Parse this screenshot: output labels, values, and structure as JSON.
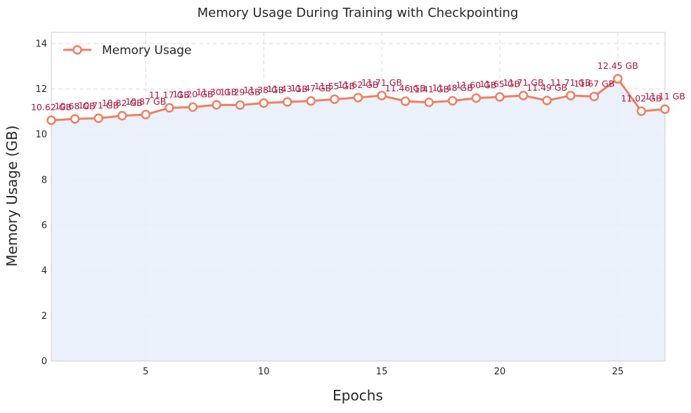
{
  "chart_data": {
    "type": "line",
    "title": "Memory Usage During Training with Checkpointing",
    "xlabel": "Epochs",
    "ylabel": "Memory Usage (GB)",
    "xlim": [
      1,
      27
    ],
    "ylim": [
      0,
      14.5
    ],
    "xticks": [
      5,
      10,
      15,
      20,
      25
    ],
    "yticks": [
      0,
      2,
      4,
      6,
      8,
      10,
      12,
      14
    ],
    "grid": true,
    "legend_position": "top-left",
    "colors": {
      "line": "#ef7f62",
      "fill": "#e8f0fb",
      "marker_fill": "#ffffff",
      "label": "#b0123b",
      "frame": "#cccccc"
    },
    "series": [
      {
        "name": "Memory Usage",
        "x": [
          1,
          2,
          3,
          4,
          5,
          6,
          7,
          8,
          9,
          10,
          11,
          12,
          13,
          14,
          15,
          16,
          17,
          18,
          19,
          20,
          21,
          22,
          23,
          24,
          25,
          26,
          27
        ],
        "values": [
          10.62,
          10.68,
          10.71,
          10.82,
          10.87,
          11.17,
          11.2,
          11.3,
          11.29,
          11.38,
          11.43,
          11.47,
          11.55,
          11.62,
          11.71,
          11.46,
          11.41,
          11.48,
          11.6,
          11.65,
          11.71,
          11.49,
          11.71,
          11.67,
          12.45,
          11.02,
          11.11
        ],
        "labels": [
          "10.62 GB",
          "10.68 GB",
          "10.71 GB",
          "10.82 GB",
          "10.87 GB",
          "11.17 GB",
          "11.20 GB",
          "11.30 GB",
          "11.29 GB",
          "11.38 GB",
          "11.43 GB",
          "11.47 GB",
          "11.55 GB",
          "11.62 GB",
          "11.71 GB",
          "11.46 GB",
          "11.41 GB",
          "11.48 GB",
          "11.60 GB",
          "11.65 GB",
          "11.71 GB",
          "11.49 GB",
          "11.71 GB",
          "11.67 GB",
          "12.45 GB",
          "11.02 GB",
          "11.11 GB"
        ]
      }
    ]
  }
}
